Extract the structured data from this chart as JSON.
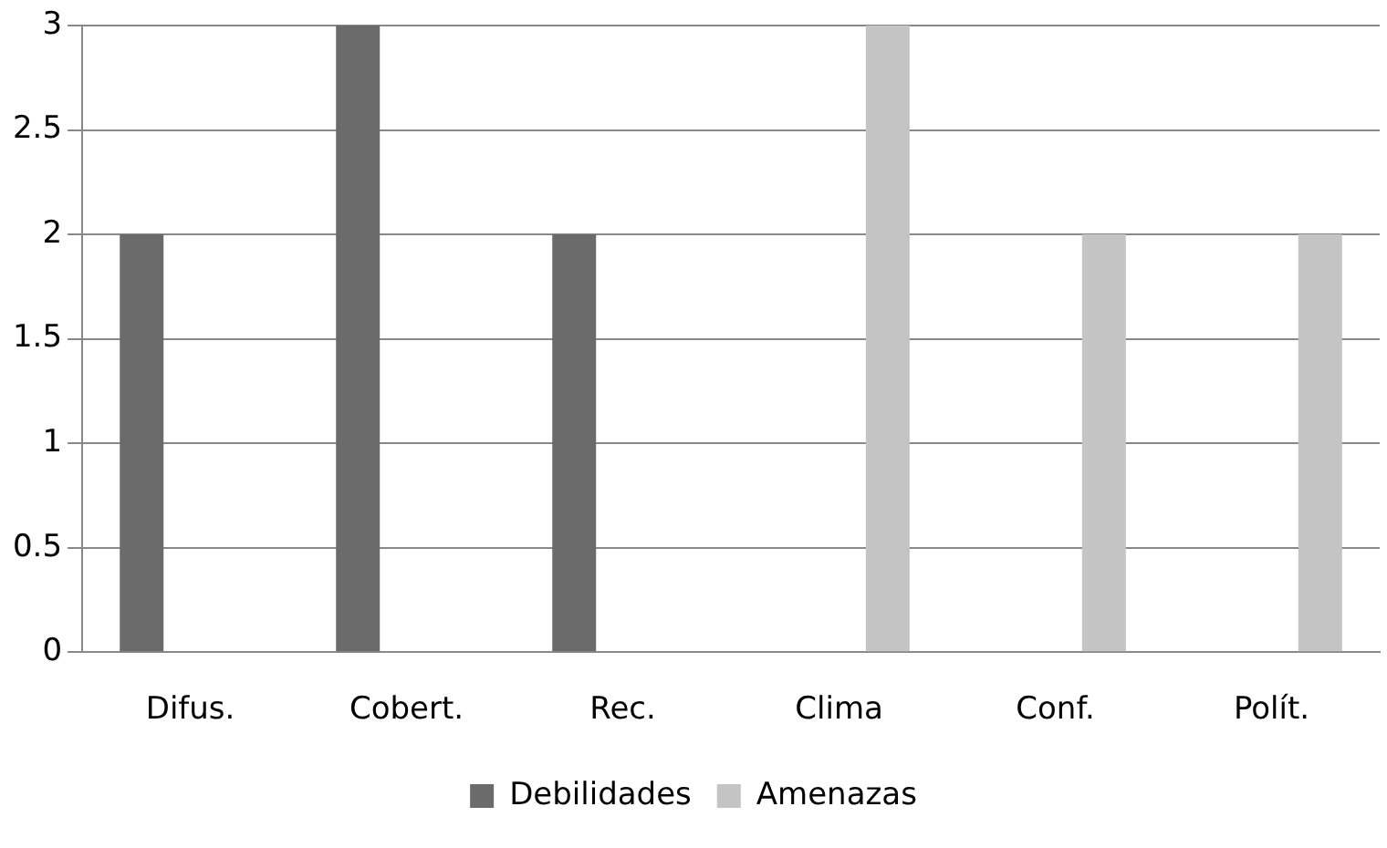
{
  "chart_data": {
    "type": "bar",
    "categories": [
      "Difus.",
      "Cobert.",
      "Rec.",
      "Clima",
      "Conf.",
      "Polít."
    ],
    "series": [
      {
        "name": "Debilidades",
        "color": "#6b6b6b",
        "values": [
          2,
          3,
          2,
          null,
          null,
          null
        ]
      },
      {
        "name": "Amenazas",
        "color": "#c4c4c4",
        "values": [
          null,
          null,
          null,
          3,
          2,
          2
        ]
      }
    ],
    "ylim": [
      0,
      3
    ],
    "yticks": [
      0,
      0.5,
      1,
      1.5,
      2,
      2.5,
      3
    ],
    "grid": "y",
    "legend": "bottom"
  }
}
